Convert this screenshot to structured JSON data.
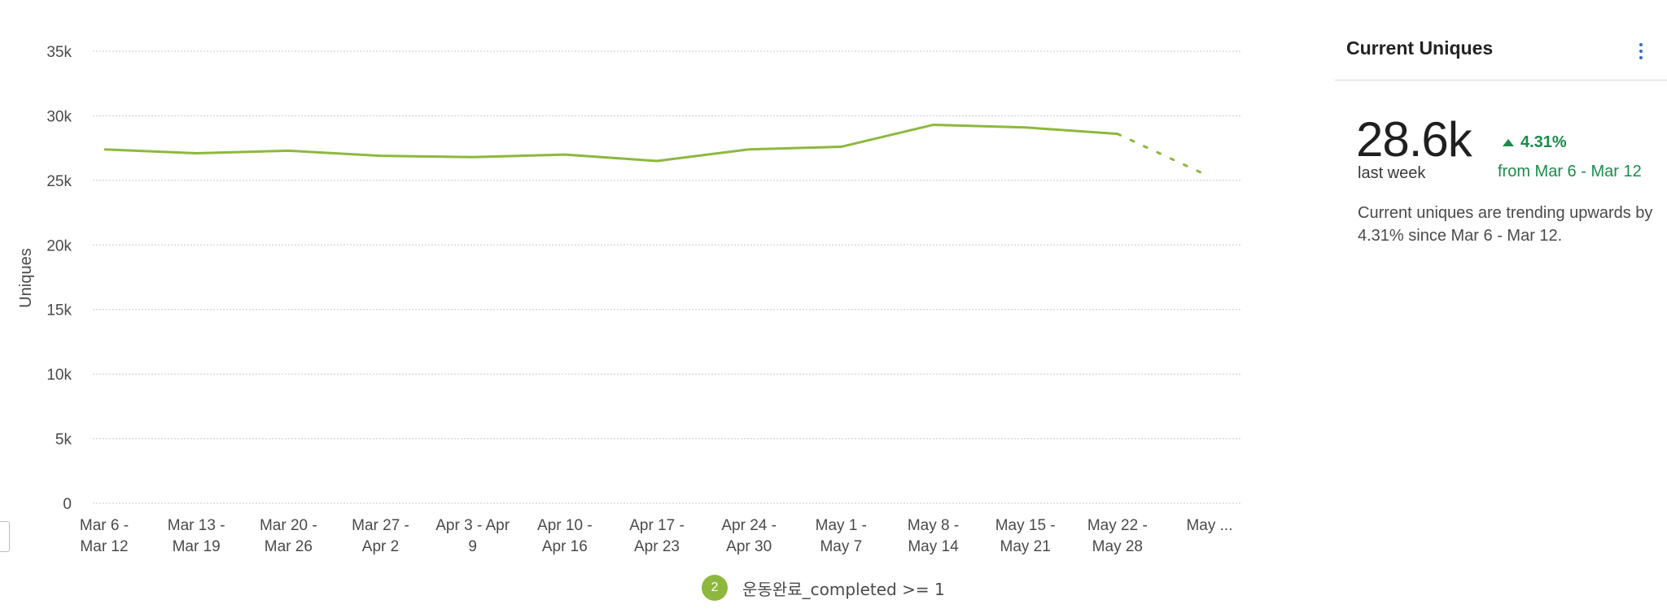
{
  "chart_data": {
    "type": "line",
    "ylabel": "Uniques",
    "ylim": [
      0,
      35000
    ],
    "yticks": [
      {
        "value": 35000,
        "label": "35k"
      },
      {
        "value": 30000,
        "label": "30k"
      },
      {
        "value": 25000,
        "label": "25k"
      },
      {
        "value": 20000,
        "label": "20k"
      },
      {
        "value": 15000,
        "label": "15k"
      },
      {
        "value": 10000,
        "label": "10k"
      },
      {
        "value": 5000,
        "label": "5k"
      },
      {
        "value": 0,
        "label": "0"
      }
    ],
    "categories": [
      [
        "Mar 6 -",
        "Mar 12"
      ],
      [
        "Mar 13 -",
        "Mar 19"
      ],
      [
        "Mar 20 -",
        "Mar 26"
      ],
      [
        "Mar 27 -",
        "Apr 2"
      ],
      [
        "Apr 3 - Apr",
        "9"
      ],
      [
        "Apr 10 -",
        "Apr 16"
      ],
      [
        "Apr 17 -",
        "Apr 23"
      ],
      [
        "Apr 24 -",
        "Apr 30"
      ],
      [
        "May 1 -",
        "May 7"
      ],
      [
        "May 8 -",
        "May 14"
      ],
      [
        "May 15 -",
        "May 21"
      ],
      [
        "May 22 -",
        "May 28"
      ],
      [
        "May ..."
      ]
    ],
    "series": [
      {
        "name": "운동완료_completed >= 1",
        "color": "#8db83d",
        "values": [
          27400,
          27100,
          27300,
          26900,
          26800,
          27000,
          26500,
          27400,
          27600,
          29300,
          29100,
          28600,
          25300
        ],
        "partial_last": true
      }
    ],
    "grid": true,
    "legend_position": "bottom-center"
  },
  "legend": {
    "badge": "2",
    "label": "운동완료_completed >= 1"
  },
  "panel": {
    "title": "Current Uniques",
    "value": "28.6k",
    "sub": "last week",
    "delta": "4.31%",
    "delta_from": "from Mar 6 - Mar 12",
    "description": "Current uniques are trending upwards by 4.31% since Mar 6 - Mar 12.",
    "accent": "#1a8c4a",
    "kebab_color": "#2f6fc7"
  }
}
